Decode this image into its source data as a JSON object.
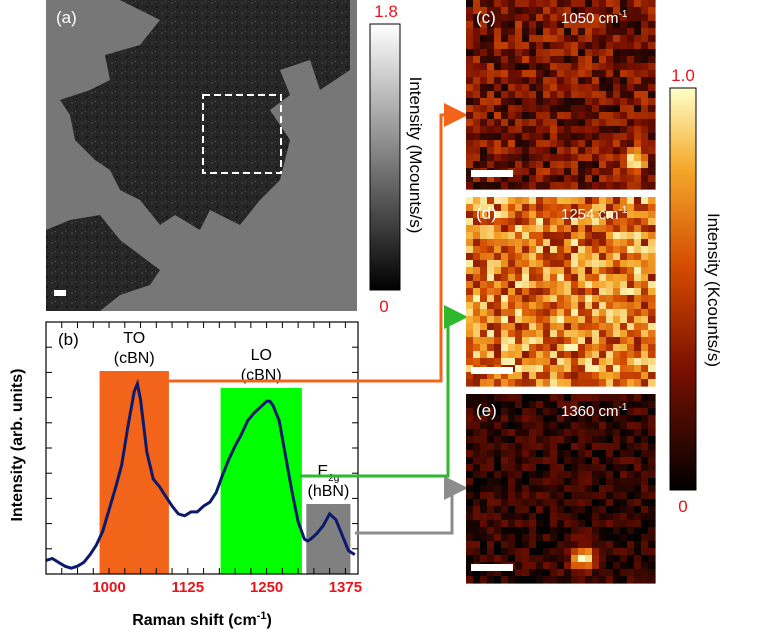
{
  "panels": {
    "a": {
      "label": "(a)",
      "colorbar_max": "1.8",
      "colorbar_min": "0",
      "colorbar_label": "Intensity (Mcounts/s)"
    },
    "b": {
      "label": "(b)"
    },
    "c": {
      "label": "(c)",
      "wavenumber": "1050 cm",
      "superscript": "-1"
    },
    "d": {
      "label": "(d)",
      "wavenumber": "1254 cm",
      "superscript": "-1"
    },
    "e": {
      "label": "(e)",
      "wavenumber": "1360 cm",
      "superscript": "-1"
    },
    "right_colorbar": {
      "max": "1.0",
      "min": "0",
      "label": "Intensity (Kcounts/s)"
    }
  },
  "colors": {
    "accent_red": "#e8141c",
    "to_band": "#f26419",
    "lo_band": "#00ff00",
    "e2g_band": "#808080",
    "spectrum_line": "#0c1a6b",
    "arrow_orange": "#f26419",
    "arrow_green": "#2db82d",
    "arrow_gray": "#8c8c8c"
  },
  "chart_data": {
    "type": "line",
    "xlabel": "Raman shift (cm",
    "xlabel_sup": "-1",
    "xlabel_end": ")",
    "ylabel": "Intensity (arb. units)",
    "xlim": [
      900,
      1395
    ],
    "ylim": [
      0,
      1
    ],
    "xticks": [
      1000,
      1125,
      1250,
      1375
    ],
    "bands": [
      {
        "name_line1": "TO",
        "name_line2": "(cBN)",
        "x0": 985,
        "x1": 1095,
        "color": "#f26419"
      },
      {
        "name_line1": "LO",
        "name_line2": "(cBN)",
        "x0": 1177,
        "x1": 1306,
        "color": "#00ff00"
      },
      {
        "name_line1": "E",
        "name_sub": "2g",
        "name_line2": "(hBN)",
        "x0": 1313,
        "x1": 1383,
        "color": "#808080"
      }
    ],
    "series": [
      {
        "x": [
          900,
          910,
          920,
          930,
          940,
          950,
          960,
          970,
          980,
          990,
          1000,
          1010,
          1020,
          1030,
          1040,
          1045,
          1050,
          1060,
          1070,
          1080,
          1090,
          1100,
          1110,
          1120,
          1130,
          1140,
          1150,
          1160,
          1170,
          1180,
          1190,
          1200,
          1210,
          1220,
          1230,
          1240,
          1250,
          1255,
          1260,
          1270,
          1280,
          1290,
          1300,
          1310,
          1315,
          1320,
          1330,
          1340,
          1350,
          1360,
          1370,
          1380,
          1390
        ],
        "y": [
          0.07,
          0.08,
          0.06,
          0.04,
          0.03,
          0.04,
          0.06,
          0.1,
          0.15,
          0.22,
          0.33,
          0.44,
          0.56,
          0.76,
          0.94,
          0.98,
          0.9,
          0.63,
          0.49,
          0.45,
          0.4,
          0.35,
          0.31,
          0.3,
          0.32,
          0.32,
          0.35,
          0.37,
          0.42,
          0.51,
          0.59,
          0.66,
          0.72,
          0.79,
          0.83,
          0.86,
          0.89,
          0.89,
          0.87,
          0.79,
          0.61,
          0.43,
          0.27,
          0.18,
          0.17,
          0.18,
          0.21,
          0.25,
          0.31,
          0.28,
          0.2,
          0.12,
          0.1
        ]
      }
    ]
  }
}
